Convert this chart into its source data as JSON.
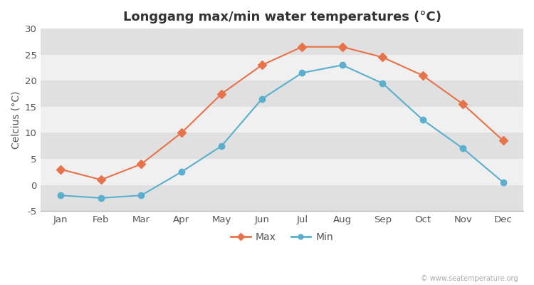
{
  "title": "Longgang max/min water temperatures (°C)",
  "ylabel": "Celcius (°C)",
  "months": [
    "Jan",
    "Feb",
    "Mar",
    "Apr",
    "May",
    "Jun",
    "Jul",
    "Aug",
    "Sep",
    "Oct",
    "Nov",
    "Dec"
  ],
  "max_values": [
    3.0,
    1.0,
    4.0,
    10.0,
    17.5,
    23.0,
    26.5,
    26.5,
    24.5,
    21.0,
    15.5,
    8.5
  ],
  "min_values": [
    -2.0,
    -2.5,
    -2.0,
    2.5,
    7.5,
    16.5,
    21.5,
    23.0,
    19.5,
    12.5,
    7.0,
    0.5
  ],
  "max_color": "#e8724a",
  "min_color": "#5aafcf",
  "bg_color": "#ffffff",
  "band_light": "#f0f0f0",
  "band_dark": "#e0e0e0",
  "ylim": [
    -5,
    30
  ],
  "yticks": [
    -5,
    0,
    5,
    10,
    15,
    20,
    25,
    30
  ],
  "watermark": "© www.seatemperature.org",
  "title_fontsize": 13,
  "label_fontsize": 10,
  "tick_fontsize": 9.5,
  "legend_labels": [
    "Max",
    "Min"
  ]
}
